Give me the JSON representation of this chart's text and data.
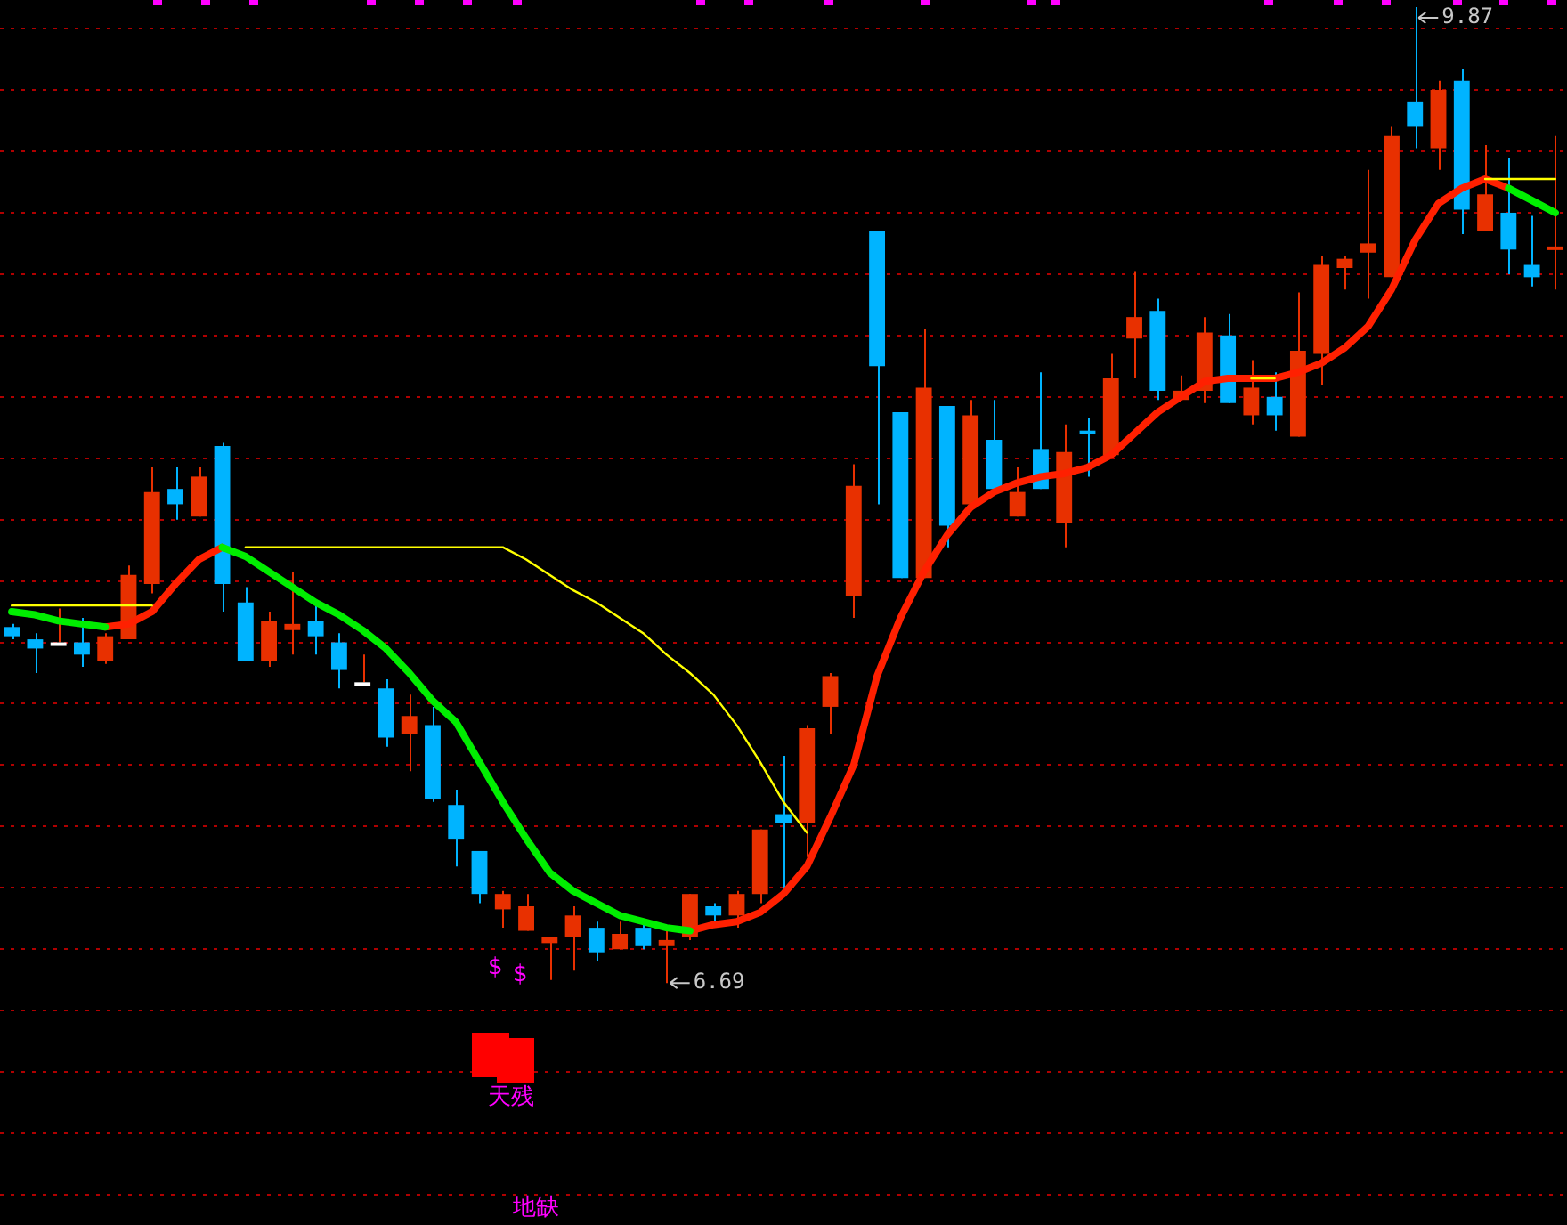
{
  "chart_data": {
    "type": "candlestick",
    "categories": [
      null,
      null,
      null,
      null,
      null,
      null,
      null,
      null,
      null,
      null,
      null,
      null,
      null,
      null,
      null,
      null,
      null,
      null,
      null,
      null,
      null,
      null,
      null,
      null,
      null,
      null,
      null,
      null,
      null,
      null,
      null,
      null,
      null,
      null,
      null,
      null,
      null,
      null,
      null,
      null,
      null,
      null,
      null,
      null,
      null,
      null,
      null,
      null,
      null,
      null,
      null,
      null,
      null,
      null,
      null,
      null,
      null,
      null,
      null,
      null,
      null,
      null,
      null,
      null,
      null,
      null,
      null
    ],
    "ohlc": [
      [
        7.85,
        7.86,
        7.81,
        7.82
      ],
      [
        7.81,
        7.83,
        7.7,
        7.78
      ],
      [
        7.8,
        7.91,
        7.8,
        7.8
      ],
      [
        7.8,
        7.88,
        7.72,
        7.76
      ],
      [
        7.74,
        7.83,
        7.73,
        7.82
      ],
      [
        7.81,
        8.05,
        7.81,
        8.02
      ],
      [
        7.99,
        8.37,
        7.96,
        8.29
      ],
      [
        8.3,
        8.37,
        8.2,
        8.25
      ],
      [
        8.21,
        8.37,
        8.21,
        8.34
      ],
      [
        8.44,
        8.45,
        7.9,
        7.99
      ],
      [
        7.93,
        7.98,
        7.74,
        7.74
      ],
      [
        7.74,
        7.9,
        7.72,
        7.87
      ],
      [
        7.84,
        8.03,
        7.76,
        7.86
      ],
      [
        7.87,
        7.92,
        7.76,
        7.82
      ],
      [
        7.8,
        7.83,
        7.65,
        7.71
      ],
      [
        7.67,
        7.76,
        7.67,
        7.67
      ],
      [
        7.65,
        7.68,
        7.46,
        7.49
      ],
      [
        7.5,
        7.63,
        7.38,
        7.56
      ],
      [
        7.53,
        7.59,
        7.28,
        7.29
      ],
      [
        7.27,
        7.32,
        7.07,
        7.16
      ],
      [
        7.12,
        7.12,
        6.95,
        6.98
      ],
      [
        6.93,
        6.99,
        6.87,
        6.98
      ],
      [
        6.86,
        6.98,
        6.86,
        6.94
      ],
      [
        6.82,
        6.84,
        6.7,
        6.84
      ],
      [
        6.84,
        6.94,
        6.73,
        6.91
      ],
      [
        6.87,
        6.89,
        6.76,
        6.79
      ],
      [
        6.8,
        6.89,
        6.8,
        6.85
      ],
      [
        6.87,
        6.89,
        6.8,
        6.81
      ],
      [
        6.81,
        6.86,
        6.69,
        6.83
      ],
      [
        6.84,
        6.98,
        6.83,
        6.98
      ],
      [
        6.94,
        6.95,
        6.89,
        6.91
      ],
      [
        6.91,
        6.99,
        6.87,
        6.98
      ],
      [
        6.98,
        7.19,
        6.95,
        7.19
      ],
      [
        7.24,
        7.43,
        7.0,
        7.21
      ],
      [
        7.21,
        7.53,
        7.1,
        7.52
      ],
      [
        7.59,
        7.7,
        7.5,
        7.69
      ],
      [
        7.95,
        8.38,
        7.88,
        8.31
      ],
      [
        9.14,
        9.14,
        8.25,
        8.7
      ],
      [
        8.55,
        8.55,
        8.01,
        8.01
      ],
      [
        8.01,
        8.82,
        8.01,
        8.63
      ],
      [
        8.57,
        8.57,
        8.11,
        8.18
      ],
      [
        8.25,
        8.59,
        8.25,
        8.54
      ],
      [
        8.46,
        8.59,
        8.3,
        8.3
      ],
      [
        8.21,
        8.37,
        8.21,
        8.29
      ],
      [
        8.43,
        8.68,
        8.3,
        8.3
      ],
      [
        8.19,
        8.51,
        8.11,
        8.42
      ],
      [
        8.49,
        8.53,
        8.34,
        8.48
      ],
      [
        8.41,
        8.74,
        8.41,
        8.66
      ],
      [
        8.79,
        9.01,
        8.66,
        8.86
      ],
      [
        8.88,
        8.92,
        8.59,
        8.62
      ],
      [
        8.59,
        8.67,
        8.59,
        8.62
      ],
      [
        8.62,
        8.86,
        8.58,
        8.81
      ],
      [
        8.8,
        8.87,
        8.58,
        8.58
      ],
      [
        8.54,
        8.72,
        8.51,
        8.63
      ],
      [
        8.6,
        8.68,
        8.49,
        8.54
      ],
      [
        8.47,
        8.94,
        8.47,
        8.75
      ],
      [
        8.74,
        9.06,
        8.64,
        9.03
      ],
      [
        9.02,
        9.06,
        8.95,
        9.05
      ],
      [
        9.07,
        9.34,
        8.92,
        9.1
      ],
      [
        8.99,
        9.48,
        8.99,
        9.45
      ],
      [
        9.56,
        9.87,
        9.41,
        9.48
      ],
      [
        9.41,
        9.63,
        9.34,
        9.6
      ],
      [
        9.63,
        9.67,
        9.13,
        9.21
      ],
      [
        9.14,
        9.42,
        9.14,
        9.26
      ],
      [
        9.2,
        9.38,
        9.0,
        9.08
      ],
      [
        9.03,
        9.19,
        8.96,
        8.99
      ],
      [
        9.09,
        9.45,
        8.95,
        9.09
      ]
    ],
    "colors": [
      "#00b4ff",
      "#00b4ff",
      "#ffffff",
      "#00b4ff",
      "#e83000",
      "#e83000",
      "#e83000",
      "#00b4ff",
      "#e83000",
      "#00b4ff",
      "#00b4ff",
      "#e83000",
      "#e83000",
      "#00b4ff",
      "#00b4ff",
      "#ffffff",
      "#00b4ff",
      "#e83000",
      "#00b4ff",
      "#00b4ff",
      "#00b4ff",
      "#e83000",
      "#e83000",
      "#e83000",
      "#e83000",
      "#00b4ff",
      "#e83000",
      "#00b4ff",
      "#e83000",
      "#e83000",
      "#00b4ff",
      "#e83000",
      "#e83000",
      "#00b4ff",
      "#e83000",
      "#e83000",
      "#e83000",
      "#00b4ff",
      "#00b4ff",
      "#e83000",
      "#00b4ff",
      "#e83000",
      "#00b4ff",
      "#e83000",
      "#00b4ff",
      "#e83000",
      "#00b4ff",
      "#e83000",
      "#e83000",
      "#00b4ff",
      "#e83000",
      "#e83000",
      "#00b4ff",
      "#e83000",
      "#00b4ff",
      "#e83000",
      "#e83000",
      "#e83000",
      "#e83000",
      "#e83000",
      "#00b4ff",
      "#e83000",
      "#00b4ff",
      "#e83000",
      "#00b4ff",
      "#00b4ff",
      "#e83000"
    ],
    "series": [
      {
        "type": "line",
        "color": "#ffff00",
        "values": [
          7.92,
          7.92,
          7.92,
          7.92,
          7.92,
          7.92,
          7.92,
          null,
          null,
          null,
          8.11,
          8.11,
          8.11,
          8.11,
          8.11,
          8.11,
          8.11,
          8.11,
          8.11,
          8.11,
          8.11,
          8.11,
          8.07,
          8.02,
          7.97,
          7.93,
          7.88,
          7.83,
          7.76,
          7.7,
          7.63,
          7.53,
          7.41,
          7.28,
          7.18,
          null,
          null,
          null,
          null,
          null,
          null,
          null,
          null,
          null,
          null,
          null,
          null,
          null,
          null,
          null,
          null,
          null,
          null,
          8.66,
          8.66,
          null,
          null,
          null,
          null,
          null,
          null,
          null,
          null,
          9.31,
          9.31,
          9.31,
          9.31
        ]
      },
      {
        "type": "line",
        "color": "#00ee00",
        "values": [
          7.9,
          7.89,
          7.87,
          7.86,
          7.85,
          null,
          null,
          null,
          null,
          8.11,
          8.08,
          8.03,
          7.98,
          7.93,
          7.89,
          7.84,
          7.78,
          7.7,
          7.61,
          7.54,
          7.41,
          7.28,
          7.16,
          7.05,
          6.99,
          6.95,
          6.91,
          6.89,
          6.87,
          6.86,
          null,
          null,
          null,
          null,
          null,
          null,
          null,
          null,
          null,
          null,
          null,
          null,
          null,
          null,
          null,
          null,
          null,
          null,
          null,
          null,
          null,
          null,
          null,
          null,
          null,
          null,
          null,
          null,
          null,
          null,
          null,
          null,
          null,
          null,
          9.28,
          9.24,
          9.2
        ]
      },
      {
        "type": "line",
        "color": "#ff2000",
        "values": [
          null,
          null,
          null,
          null,
          7.85,
          7.86,
          7.9,
          7.99,
          8.07,
          8.11,
          null,
          null,
          null,
          null,
          null,
          null,
          null,
          null,
          null,
          null,
          null,
          null,
          null,
          null,
          null,
          null,
          null,
          null,
          null,
          6.86,
          6.88,
          6.89,
          6.92,
          6.98,
          7.07,
          7.23,
          7.4,
          7.69,
          7.88,
          8.03,
          8.15,
          8.24,
          8.29,
          8.32,
          8.34,
          8.35,
          8.37,
          8.41,
          8.48,
          8.55,
          8.6,
          8.65,
          8.66,
          8.66,
          8.66,
          8.68,
          8.71,
          8.76,
          8.83,
          8.95,
          9.11,
          9.23,
          9.28,
          9.31,
          9.28,
          null,
          null
        ]
      }
    ],
    "yticks": [
      {
        "value": 6.0,
        "label": null
      },
      {
        "value": 6.2,
        "label": null
      },
      {
        "value": 6.4,
        "label": null
      },
      {
        "value": 6.6,
        "label": null
      },
      {
        "value": 6.8,
        "label": null
      },
      {
        "value": 7.0,
        "label": null
      },
      {
        "value": 7.2,
        "label": null
      },
      {
        "value": 7.4,
        "label": null
      },
      {
        "value": 7.6,
        "label": null
      },
      {
        "value": 7.8,
        "label": null
      },
      {
        "value": 8.0,
        "label": null
      },
      {
        "value": 8.2,
        "label": null
      },
      {
        "value": 8.4,
        "label": null
      },
      {
        "value": 8.6,
        "label": null
      },
      {
        "value": 8.8,
        "label": null
      },
      {
        "value": 9.0,
        "label": null
      },
      {
        "value": 9.2,
        "label": null
      },
      {
        "value": 9.4,
        "label": null
      },
      {
        "value": 9.6,
        "label": null
      },
      {
        "value": 9.8,
        "label": null
      }
    ],
    "grid": "y",
    "tick_labels": false,
    "legend": false,
    "annotations": [
      "9.87",
      "6.69",
      "$",
      "$",
      "天残",
      "地缺"
    ]
  }
}
